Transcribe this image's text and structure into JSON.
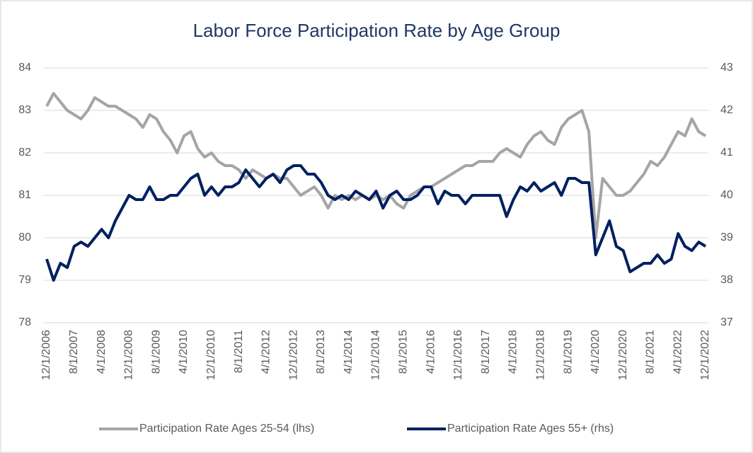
{
  "chart_data": {
    "type": "line",
    "title": "Labor Force Participation Rate by Age Group",
    "categories": [
      "12/1/2006",
      null,
      null,
      null,
      "8/1/2007",
      null,
      null,
      null,
      "4/1/2008",
      null,
      null,
      null,
      "12/1/2008",
      null,
      null,
      null,
      "8/1/2009",
      null,
      null,
      null,
      "4/1/2010",
      null,
      null,
      null,
      "12/1/2010",
      null,
      null,
      null,
      "8/1/2011",
      null,
      null,
      null,
      "4/1/2012",
      null,
      null,
      null,
      "12/1/2012",
      null,
      null,
      null,
      "8/1/2013",
      null,
      null,
      null,
      "4/1/2014",
      null,
      null,
      null,
      "12/1/2014",
      null,
      null,
      null,
      "8/1/2015",
      null,
      null,
      null,
      "4/1/2016",
      null,
      null,
      null,
      "12/1/2016",
      null,
      null,
      null,
      "8/1/2017",
      null,
      null,
      null,
      "4/1/2018",
      null,
      null,
      null,
      "12/1/2018",
      null,
      null,
      null,
      "8/1/2019",
      null,
      null,
      null,
      "4/1/2020",
      null,
      null,
      null,
      "12/1/2020",
      null,
      null,
      null,
      "8/1/2021",
      null,
      null,
      null,
      "4/1/2022",
      null,
      null,
      null,
      "12/1/2022"
    ],
    "series": [
      {
        "name": "Participation Rate Ages 25-54 (lhs)",
        "color": "#a5a5a5",
        "axis": "y",
        "values": [
          83.1,
          83.4,
          83.2,
          83.0,
          82.9,
          82.8,
          83.0,
          83.3,
          83.2,
          83.1,
          83.1,
          83.0,
          82.9,
          82.8,
          82.6,
          82.9,
          82.8,
          82.5,
          82.3,
          82.0,
          82.4,
          82.5,
          82.1,
          81.9,
          82.0,
          81.8,
          81.7,
          81.7,
          81.6,
          81.4,
          81.6,
          81.5,
          81.4,
          81.5,
          81.4,
          81.4,
          81.2,
          81.0,
          81.1,
          81.2,
          81.0,
          80.7,
          81.0,
          80.9,
          81.0,
          80.9,
          81.0,
          80.9,
          81.0,
          80.9,
          81.0,
          80.8,
          80.7,
          81.0,
          81.1,
          81.2,
          81.2,
          81.3,
          81.4,
          81.5,
          81.6,
          81.7,
          81.7,
          81.8,
          81.8,
          81.8,
          82.0,
          82.1,
          82.0,
          81.9,
          82.2,
          82.4,
          82.5,
          82.3,
          82.2,
          82.6,
          82.8,
          82.9,
          83.0,
          82.5,
          80.0,
          81.4,
          81.2,
          81.0,
          81.0,
          81.1,
          81.3,
          81.5,
          81.8,
          81.7,
          81.9,
          82.2,
          82.5,
          82.4,
          82.8,
          82.5,
          82.4
        ]
      },
      {
        "name": "Participation Rate Ages 55+ (rhs)",
        "color": "#002060",
        "axis": "y2",
        "values": [
          38.5,
          38.0,
          38.4,
          38.3,
          38.8,
          38.9,
          38.8,
          39.0,
          39.2,
          39.0,
          39.4,
          39.7,
          40.0,
          39.9,
          39.9,
          40.2,
          39.9,
          39.9,
          40.0,
          40.0,
          40.2,
          40.4,
          40.5,
          40.0,
          40.2,
          40.0,
          40.2,
          40.2,
          40.3,
          40.6,
          40.4,
          40.2,
          40.4,
          40.5,
          40.3,
          40.6,
          40.7,
          40.7,
          40.5,
          40.5,
          40.3,
          40.0,
          39.9,
          40.0,
          39.9,
          40.1,
          40.0,
          39.9,
          40.1,
          39.7,
          40.0,
          40.1,
          39.9,
          39.9,
          40.0,
          40.2,
          40.2,
          39.8,
          40.1,
          40.0,
          40.0,
          39.8,
          40.0,
          40.0,
          40.0,
          40.0,
          40.0,
          39.5,
          39.9,
          40.2,
          40.1,
          40.3,
          40.1,
          40.2,
          40.3,
          40.0,
          40.4,
          40.4,
          40.3,
          40.3,
          38.6,
          39.0,
          39.4,
          38.8,
          38.7,
          38.2,
          38.3,
          38.4,
          38.4,
          38.6,
          38.4,
          38.5,
          39.1,
          38.8,
          38.7,
          38.9,
          38.8
        ]
      }
    ],
    "ylim": [
      78,
      84
    ],
    "yticks": [
      78,
      79,
      80,
      81,
      82,
      83,
      84
    ],
    "y2lim": [
      37,
      43
    ],
    "y2ticks": [
      37,
      38,
      39,
      40,
      41,
      42,
      43
    ],
    "grid": true,
    "legend": "bottom"
  }
}
